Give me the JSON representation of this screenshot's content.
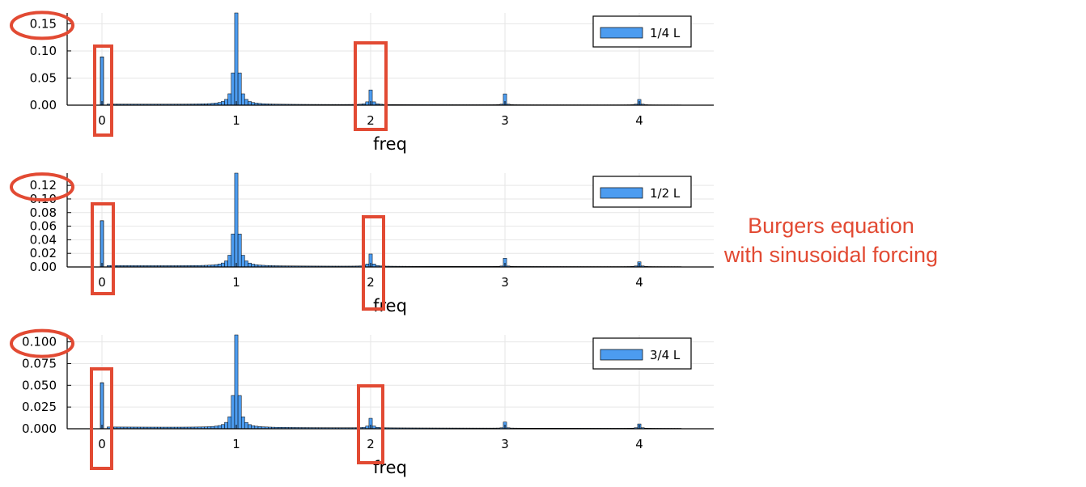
{
  "annotation": {
    "line1": "Burgers equation",
    "line2": "with sinusoidal forcing",
    "color": "#e24a33"
  },
  "colors": {
    "bar": "#4c9cf0",
    "highlight": "#e24a33"
  },
  "chart_data": [
    {
      "type": "bar",
      "xlabel": "freq",
      "xticks": [
        0,
        1,
        2,
        3,
        4
      ],
      "xlim": [
        -0.25,
        4.55
      ],
      "ylim": [
        0,
        0.17
      ],
      "yticks": [
        0.0,
        0.05,
        0.1,
        0.15
      ],
      "ytick_labels": [
        "0.00",
        "0.05",
        "0.10",
        "0.15"
      ],
      "legend": "1/4 L",
      "legend_position": "top-right",
      "grid": true,
      "peaks": {
        "f0": 0.089,
        "f1": 0.17,
        "f2": 0.027,
        "f3": 0.02,
        "f4": 0.01
      },
      "highlighted_ticks": [
        "0.15"
      ],
      "highlighted_freqs": [
        0,
        2
      ]
    },
    {
      "type": "bar",
      "xlabel": "freq",
      "xticks": [
        0,
        1,
        2,
        3,
        4
      ],
      "xlim": [
        -0.25,
        4.55
      ],
      "ylim": [
        0,
        0.138
      ],
      "yticks": [
        0.0,
        0.02,
        0.04,
        0.06,
        0.08,
        0.1,
        0.12
      ],
      "ytick_labels": [
        "0.00",
        "0.02",
        "0.04",
        "0.06",
        "0.08",
        "0.10",
        "0.12"
      ],
      "legend": "1/2 L",
      "legend_position": "top-right",
      "grid": true,
      "peaks": {
        "f0": 0.068,
        "f1": 0.138,
        "f2": 0.018,
        "f3": 0.012,
        "f4": 0.007
      },
      "highlighted_ticks": [
        "0.12"
      ],
      "highlighted_freqs": [
        0,
        2
      ]
    },
    {
      "type": "bar",
      "xlabel": "freq",
      "xticks": [
        0,
        1,
        2,
        3,
        4
      ],
      "xlim": [
        -0.25,
        4.55
      ],
      "ylim": [
        0,
        0.108
      ],
      "yticks": [
        0.0,
        0.025,
        0.05,
        0.075,
        0.1
      ],
      "ytick_labels": [
        "0.000",
        "0.025",
        "0.050",
        "0.075",
        "0.100"
      ],
      "legend": "3/4 L",
      "legend_position": "top-right",
      "grid": true,
      "peaks": {
        "f0": 0.053,
        "f1": 0.108,
        "f2": 0.011,
        "f3": 0.007,
        "f4": 0.005
      },
      "highlighted_ticks": [
        "0.100"
      ],
      "highlighted_freqs": [
        0,
        2
      ]
    }
  ]
}
